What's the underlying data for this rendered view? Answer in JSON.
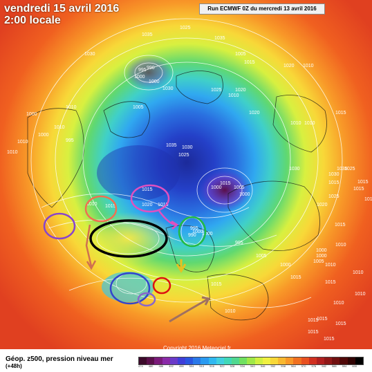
{
  "header": {
    "date": "vendredi 15 avril 2016",
    "time": "2:00 locale",
    "run": "Run ECMWF 0Z du mercredi 13 avril 2016"
  },
  "footer": {
    "title": "Géop. z500, pression niveau mer",
    "subtitle": "(+48h)",
    "copyright": "Copyright 2016 Meteociel.fr"
  },
  "pressure_labels": [
    {
      "text": "1035"
    },
    {
      "text": "1025"
    },
    {
      "text": "1035"
    },
    {
      "text": "1030"
    },
    {
      "text": "995"
    },
    {
      "text": "990"
    },
    {
      "text": "1000"
    },
    {
      "text": "1030"
    },
    {
      "text": "1005"
    },
    {
      "text": "1005"
    },
    {
      "text": "1000"
    },
    {
      "text": "1015"
    },
    {
      "text": "1025"
    },
    {
      "text": "1020"
    },
    {
      "text": "1020"
    },
    {
      "text": "1010"
    },
    {
      "text": "1010"
    },
    {
      "text": "1020"
    },
    {
      "text": "1010"
    },
    {
      "text": "1010"
    },
    {
      "text": "1015"
    },
    {
      "text": "1000"
    },
    {
      "text": "1010"
    },
    {
      "text": "1010"
    },
    {
      "text": "995"
    },
    {
      "text": "1000"
    },
    {
      "text": "1010"
    },
    {
      "text": "1010"
    },
    {
      "text": "1035"
    },
    {
      "text": "1030"
    },
    {
      "text": "1025"
    },
    {
      "text": "1030"
    },
    {
      "text": "1000"
    },
    {
      "text": "1005"
    },
    {
      "text": "1000"
    },
    {
      "text": "1015"
    },
    {
      "text": "1010"
    },
    {
      "text": "1015"
    },
    {
      "text": "1020"
    },
    {
      "text": "1015"
    },
    {
      "text": "1015"
    },
    {
      "text": "1020"
    },
    {
      "text": "1015"
    },
    {
      "text": "1025"
    },
    {
      "text": "1030"
    },
    {
      "text": "1035"
    },
    {
      "text": "1025"
    },
    {
      "text": "995"
    },
    {
      "text": "990"
    },
    {
      "text": "1000"
    },
    {
      "text": "1000"
    },
    {
      "text": "995"
    },
    {
      "text": "1005"
    },
    {
      "text": "1000"
    },
    {
      "text": "1000"
    },
    {
      "text": "1000"
    },
    {
      "text": "1015"
    },
    {
      "text": "1010"
    },
    {
      "text": "1010"
    },
    {
      "text": "1005"
    },
    {
      "text": "1010"
    },
    {
      "text": "1015"
    },
    {
      "text": "1015"
    },
    {
      "text": "1010"
    },
    {
      "text": "1010"
    },
    {
      "text": "1015"
    },
    {
      "text": "1010"
    },
    {
      "text": "1015"
    },
    {
      "text": "1015"
    },
    {
      "text": "1015"
    },
    {
      "text": "1015"
    },
    {
      "text": "1015"
    },
    {
      "text": "1015"
    },
    {
      "text": "1015"
    },
    {
      "text": "1010"
    }
  ],
  "annotations": [
    {
      "shape": "ellipse",
      "color": "#8844cc"
    },
    {
      "shape": "ellipse",
      "color": "#f07050"
    },
    {
      "shape": "ellipse",
      "color": "#000000"
    },
    {
      "shape": "ellipse",
      "color": "#e050c0"
    },
    {
      "shape": "ellipse",
      "color": "#22bb44"
    },
    {
      "shape": "ellipse",
      "color": "#3344cc"
    },
    {
      "shape": "ellipse",
      "color": "#dd1111"
    },
    {
      "shape": "ellipse",
      "color": "#8866cc"
    },
    {
      "shape": "arrow",
      "color": "#d07050"
    },
    {
      "shape": "arrow",
      "color": "#e050c0"
    },
    {
      "shape": "arrow",
      "color": "#a07060"
    },
    {
      "shape": "arrow",
      "color": "#e8c020"
    }
  ],
  "scale_colors": [
    "#3b0a2a",
    "#5a0f4a",
    "#7a1a7a",
    "#8a2aa8",
    "#6a3ac8",
    "#3e3ed8",
    "#2a55e0",
    "#2a78e8",
    "#2a9af0",
    "#30b8f0",
    "#40d0e0",
    "#40d8b8",
    "#50d890",
    "#70e060",
    "#a0e848",
    "#d0f040",
    "#f0f040",
    "#f8d838",
    "#f8b830",
    "#f89828",
    "#f07020",
    "#e85020",
    "#d03020",
    "#b02020",
    "#901818",
    "#701010",
    "#500808",
    "#300404",
    "#000000"
  ],
  "scale_ticks": [
    "474",
    "480",
    "486",
    "492",
    "498",
    "504",
    "510",
    "516",
    "522",
    "528",
    "534",
    "540",
    "546",
    "552",
    "558",
    "564",
    "570",
    "576",
    "582",
    "588",
    "594",
    "600"
  ]
}
